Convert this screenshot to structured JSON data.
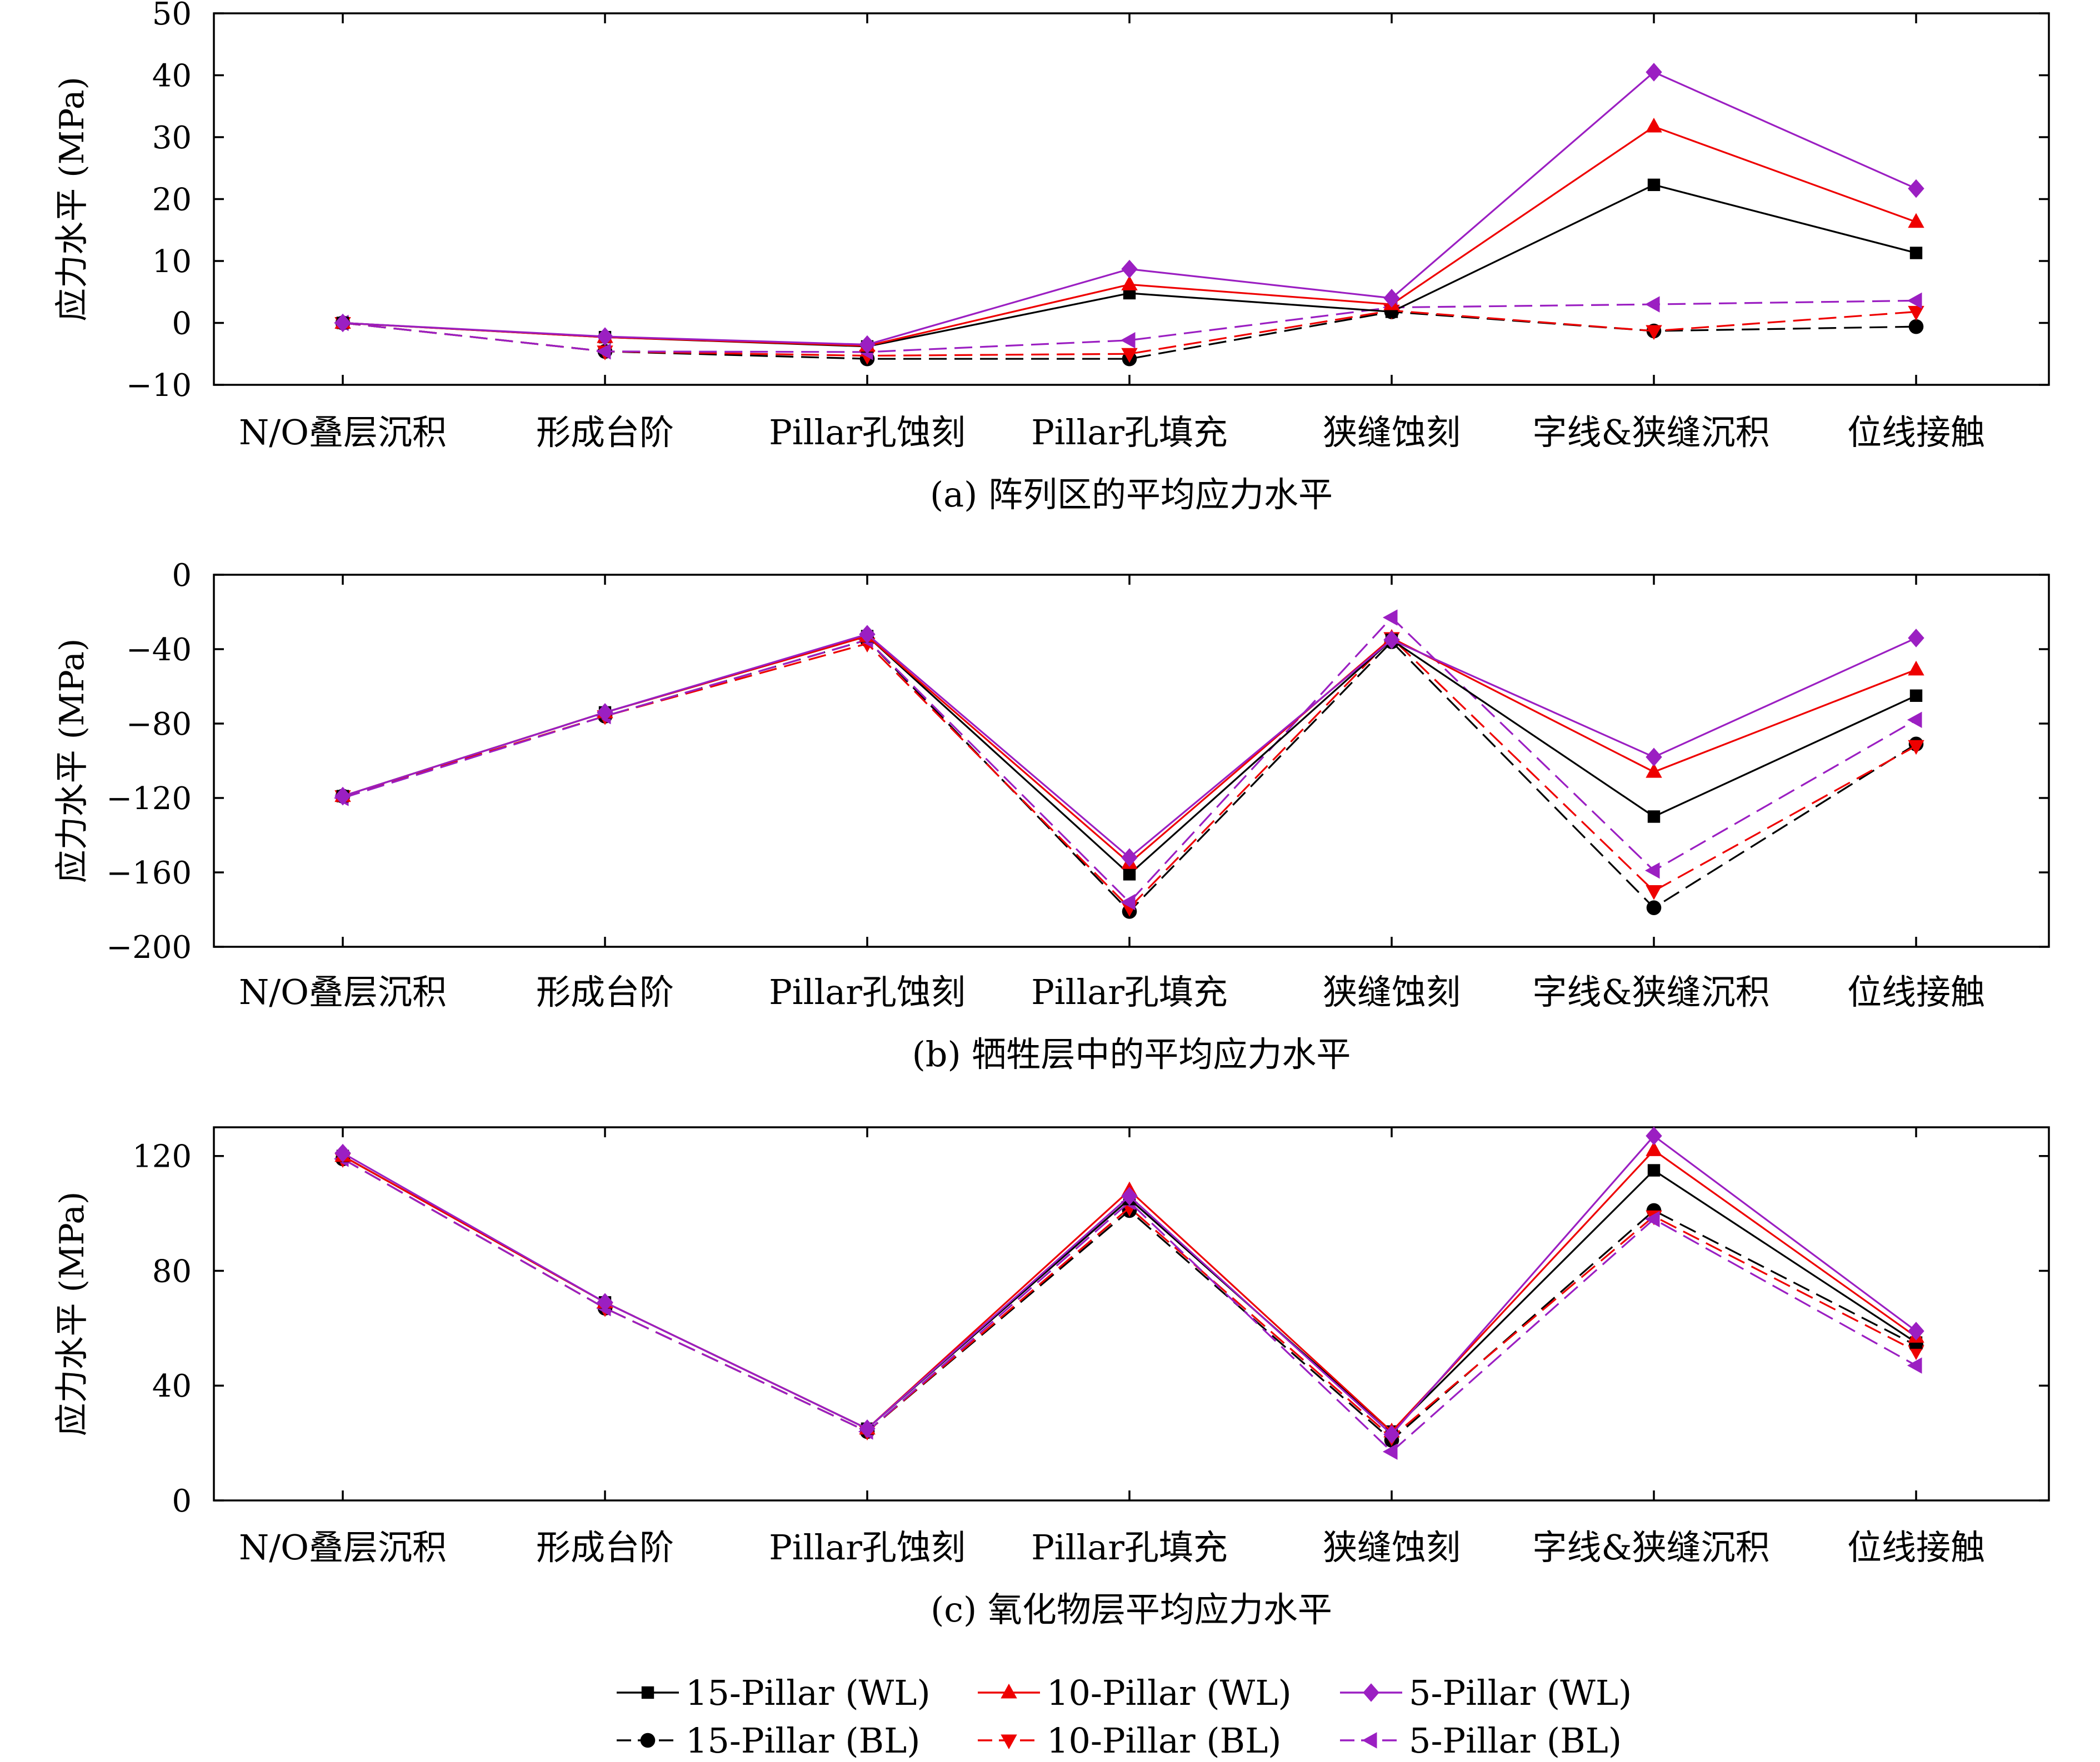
{
  "chart_data": [
    {
      "type": "line",
      "title": "(a) 阵列区的平均应力水平",
      "ylabel": "应力水平 (MPa)",
      "ylim": [
        -10,
        50
      ],
      "yticks": [
        -10,
        0,
        10,
        20,
        30,
        40,
        50
      ],
      "categories": [
        "N/O叠层沉积",
        "形成台阶",
        "Pillar孔蚀刻",
        "Pillar孔填充",
        "狭缝蚀刻",
        "字线&狭缝沉积",
        "位线接触"
      ],
      "series": [
        {
          "name": "15-Pillar (WL)",
          "values": [
            0,
            -2.3,
            -3.8,
            4.8,
            1.8,
            22.3,
            11.3
          ]
        },
        {
          "name": "10-Pillar (WL)",
          "values": [
            0,
            -2.3,
            -3.7,
            6.2,
            3.0,
            31.7,
            16.3
          ]
        },
        {
          "name": "5-Pillar (WL)",
          "values": [
            0,
            -2.2,
            -3.5,
            8.7,
            4.0,
            40.5,
            21.7
          ]
        },
        {
          "name": "15-Pillar (BL)",
          "values": [
            0,
            -4.6,
            -5.8,
            -5.8,
            1.8,
            -1.3,
            -0.6
          ]
        },
        {
          "name": "10-Pillar (BL)",
          "values": [
            0,
            -4.6,
            -5.3,
            -5.0,
            2.0,
            -1.3,
            1.8
          ]
        },
        {
          "name": "5-Pillar (BL)",
          "values": [
            0,
            -4.6,
            -4.7,
            -2.8,
            2.5,
            3.0,
            3.6
          ]
        }
      ]
    },
    {
      "type": "line",
      "title": "(b) 牺牲层中的平均应力水平",
      "ylabel": "应力水平 (MPa)",
      "ylim": [
        -200,
        0
      ],
      "yticks": [
        -200,
        -160,
        -120,
        -80,
        -40,
        0
      ],
      "categories": [
        "N/O叠层沉积",
        "形成台阶",
        "Pillar孔蚀刻",
        "Pillar孔填充",
        "狭缝蚀刻",
        "字线&狭缝沉积",
        "位线接触"
      ],
      "series": [
        {
          "name": "15-Pillar (WL)",
          "values": [
            -119,
            -74,
            -33,
            -161,
            -35,
            -130,
            -65
          ]
        },
        {
          "name": "10-Pillar (WL)",
          "values": [
            -119,
            -74,
            -33,
            -155,
            -34,
            -106,
            -51
          ]
        },
        {
          "name": "5-Pillar (WL)",
          "values": [
            -119,
            -74,
            -32,
            -152,
            -35,
            -98,
            -34
          ]
        },
        {
          "name": "15-Pillar (BL)",
          "values": [
            -119,
            -76,
            -35,
            -181,
            -36,
            -179,
            -91
          ]
        },
        {
          "name": "10-Pillar (BL)",
          "values": [
            -119,
            -76,
            -37,
            -179,
            -34,
            -170,
            -92
          ]
        },
        {
          "name": "5-Pillar (BL)",
          "values": [
            -120,
            -76,
            -35,
            -176,
            -23,
            -159,
            -78
          ]
        }
      ]
    },
    {
      "type": "line",
      "title": "(c) 氧化物层平均应力水平",
      "ylabel": "应力水平 (MPa)",
      "ylim": [
        0,
        130
      ],
      "yticks": [
        0,
        40,
        80,
        120
      ],
      "categories": [
        "N/O叠层沉积",
        "形成台阶",
        "Pillar孔蚀刻",
        "Pillar孔填充",
        "狭缝蚀刻",
        "字线&狭缝沉积",
        "位线接触"
      ],
      "series": [
        {
          "name": "15-Pillar (WL)",
          "values": [
            120,
            69,
            25,
            105,
            24,
            115,
            55
          ]
        },
        {
          "name": "10-Pillar (WL)",
          "values": [
            120,
            69,
            25,
            108,
            24,
            122,
            57
          ]
        },
        {
          "name": "5-Pillar (WL)",
          "values": [
            121,
            69,
            25,
            106,
            23,
            127,
            59
          ]
        },
        {
          "name": "15-Pillar (BL)",
          "values": [
            119,
            67,
            24,
            101,
            21,
            101,
            54
          ]
        },
        {
          "name": "10-Pillar (BL)",
          "values": [
            119,
            67,
            24,
            102,
            22,
            99,
            52
          ]
        },
        {
          "name": "5-Pillar (BL)",
          "values": [
            119,
            67,
            24,
            104,
            17,
            98,
            47
          ]
        }
      ]
    }
  ],
  "legend": {
    "placement": "bottom",
    "items": [
      "15-Pillar (WL)",
      "10-Pillar (WL)",
      "5-Pillar (WL)",
      "15-Pillar (BL)",
      "10-Pillar (BL)",
      "5-Pillar (BL)"
    ]
  },
  "styles": [
    {
      "color": "#000000",
      "dash": false,
      "marker": "square"
    },
    {
      "color": "#ee0000",
      "dash": false,
      "marker": "triangle-up"
    },
    {
      "color": "#9b1fc2",
      "dash": false,
      "marker": "diamond"
    },
    {
      "color": "#000000",
      "dash": true,
      "marker": "circle"
    },
    {
      "color": "#ee0000",
      "dash": true,
      "marker": "triangle-down"
    },
    {
      "color": "#9b1fc2",
      "dash": true,
      "marker": "triangle-left"
    }
  ]
}
